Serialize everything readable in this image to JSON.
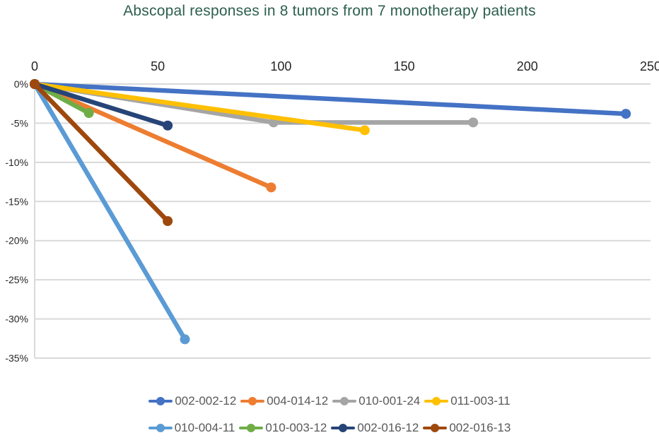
{
  "title": "Abscopal responses in 8 tumors from 7 monotherapy patients",
  "colors": {
    "title_text": "#2D5F4E",
    "axis_text": "#262626",
    "legend_text": "#595959",
    "gridline": "#D9D9D9",
    "background": "#FFFFFF"
  },
  "chart_data": {
    "type": "line",
    "title": "Abscopal responses in 8 tumors from 7 monotherapy patients",
    "xlabel": "",
    "ylabel": "",
    "x_axis_position": "top",
    "xlim": [
      0,
      250
    ],
    "ylim": [
      -35,
      0
    ],
    "x_ticks": [
      0,
      50,
      100,
      150,
      200,
      250
    ],
    "y_ticks": [
      {
        "value": 0,
        "label": "0%"
      },
      {
        "value": -5,
        "label": "-5%"
      },
      {
        "value": -10,
        "label": "-10%"
      },
      {
        "value": -15,
        "label": "-15%"
      },
      {
        "value": -20,
        "label": "-20%"
      },
      {
        "value": -25,
        "label": "-25%"
      },
      {
        "value": -30,
        "label": "-30%"
      },
      {
        "value": -35,
        "label": "-35%"
      }
    ],
    "grid": "horizontal",
    "legend_position": "bottom",
    "legend_rows": [
      4,
      4
    ],
    "series": [
      {
        "name": "002-002-12",
        "color": "#4472C4",
        "points": [
          [
            0,
            0
          ],
          [
            240,
            -3.8
          ]
        ]
      },
      {
        "name": "004-014-12",
        "color": "#ED7D31",
        "points": [
          [
            0,
            0
          ],
          [
            96,
            -13.2
          ]
        ]
      },
      {
        "name": "010-001-24",
        "color": "#A5A5A5",
        "points": [
          [
            0,
            0
          ],
          [
            97,
            -4.9
          ],
          [
            178,
            -4.9
          ]
        ]
      },
      {
        "name": "011-003-11",
        "color": "#FFC000",
        "points": [
          [
            0,
            0
          ],
          [
            134,
            -5.9
          ]
        ]
      },
      {
        "name": "010-004-11",
        "color": "#5B9BD5",
        "points": [
          [
            0,
            0
          ],
          [
            61,
            -32.6
          ]
        ]
      },
      {
        "name": "010-003-12",
        "color": "#70AD47",
        "points": [
          [
            0,
            0
          ],
          [
            22,
            -3.7
          ]
        ]
      },
      {
        "name": "002-016-12",
        "color": "#264478",
        "points": [
          [
            0,
            0
          ],
          [
            54,
            -5.3
          ]
        ]
      },
      {
        "name": "002-016-13",
        "color": "#9E480E",
        "points": [
          [
            0,
            0
          ],
          [
            54,
            -17.5
          ]
        ]
      }
    ]
  }
}
